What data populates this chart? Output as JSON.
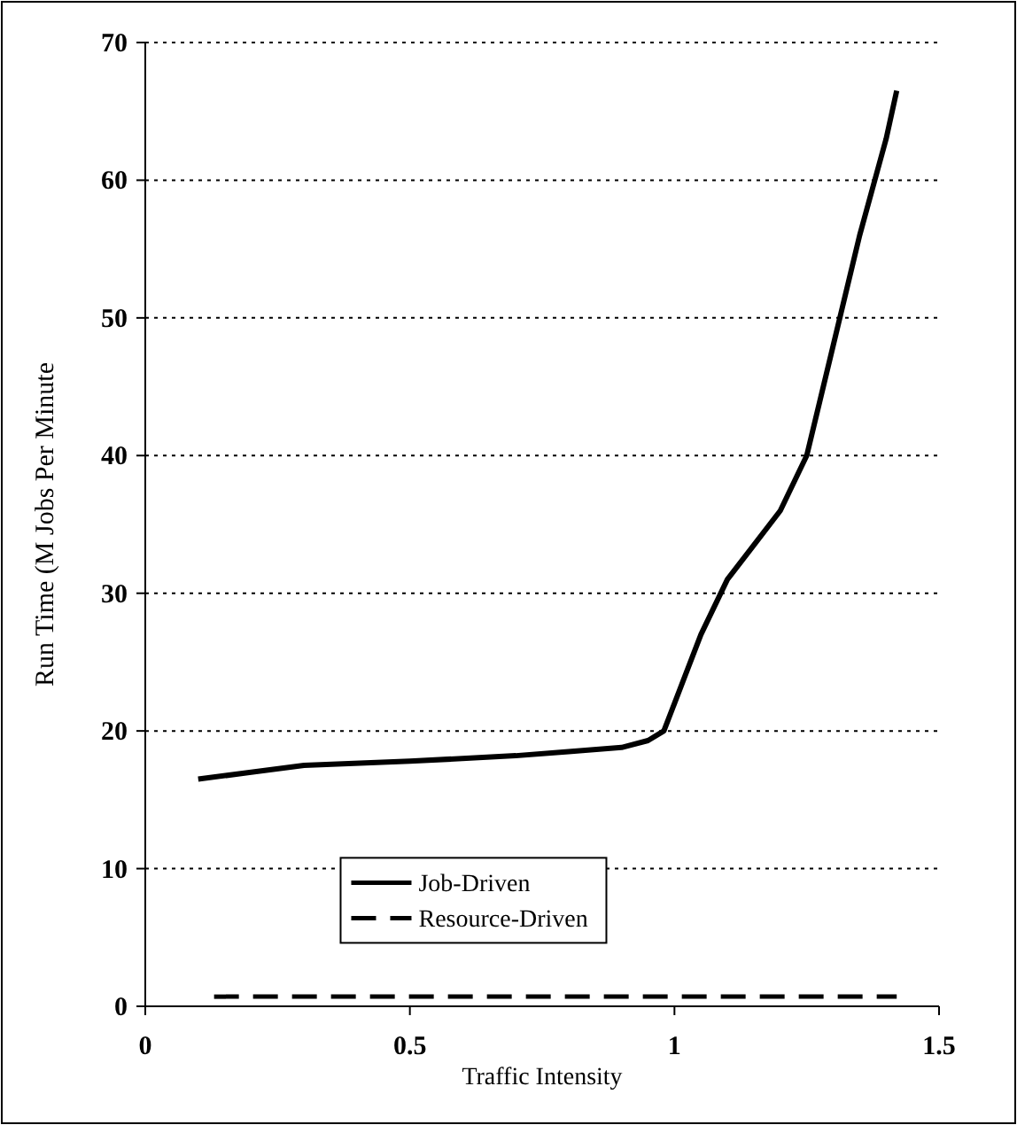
{
  "chart_data": {
    "type": "line",
    "xlabel": "Traffic Intensity",
    "ylabel": "Run Time (M Jobs Per Minute",
    "xlim": [
      0,
      1.5
    ],
    "xticks": [
      0,
      0.5,
      1,
      1.5
    ],
    "ylim": [
      0,
      70
    ],
    "yticks": [
      0,
      10,
      20,
      30,
      40,
      50,
      60,
      70
    ],
    "grid": "y",
    "legend": "bottom",
    "series": [
      {
        "name": "Job-Driven",
        "color": "#000000",
        "line_style": "solid",
        "x": [
          0.1,
          0.2,
          0.3,
          0.5,
          0.7,
          0.8,
          0.9,
          0.95,
          0.98,
          1.0,
          1.05,
          1.1,
          1.15,
          1.2,
          1.25,
          1.3,
          1.35,
          1.4,
          1.42
        ],
        "values": [
          16.5,
          17,
          17.5,
          17.8,
          18.2,
          18.5,
          18.8,
          19.3,
          20,
          22,
          27,
          31,
          33.5,
          36,
          40,
          48,
          56,
          63,
          66.5
        ]
      },
      {
        "name": "Resource-Driven",
        "color": "#000000",
        "line_style": "dashed",
        "x": [
          0.13,
          1.42
        ],
        "values": [
          0.7,
          0.7
        ]
      }
    ]
  }
}
